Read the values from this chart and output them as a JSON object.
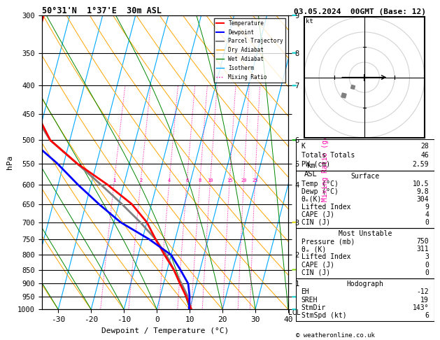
{
  "title_left": "50°31'N  1°37'E  30m ASL",
  "title_right": "03.05.2024  00GMT (Base: 12)",
  "xlabel": "Dewpoint / Temperature (°C)",
  "ylabel_left": "hPa",
  "pressure_levels": [
    300,
    350,
    400,
    450,
    500,
    550,
    600,
    650,
    700,
    750,
    800,
    850,
    900,
    950,
    1000
  ],
  "temp_color": "#ff0000",
  "dewp_color": "#0000ff",
  "parcel_color": "#808080",
  "dry_adiabat_color": "#ffa500",
  "wet_adiabat_color": "#008800",
  "isotherm_color": "#00aaff",
  "mixing_ratio_color": "#ff00aa",
  "xlim": [
    -35,
    40
  ],
  "temp_profile_T": [
    10.5,
    8.0,
    5.0,
    2.0,
    -2.0,
    -6.0,
    -10.0,
    -16.0,
    -25.0,
    -36.0,
    -46.0,
    -52.0,
    -57.0,
    -58.0,
    -58.0
  ],
  "temp_profile_p": [
    1000,
    950,
    900,
    850,
    800,
    750,
    700,
    650,
    600,
    550,
    500,
    450,
    400,
    350,
    300
  ],
  "dewp_profile_T": [
    9.8,
    9.0,
    7.5,
    4.0,
    0.0,
    -8.0,
    -18.0,
    -26.0,
    -34.0,
    -42.0,
    -52.0,
    -58.0,
    -62.0,
    -64.0,
    -65.0
  ],
  "dewp_profile_p": [
    1000,
    950,
    900,
    850,
    800,
    750,
    700,
    650,
    600,
    550,
    500,
    450,
    400,
    350,
    300
  ],
  "parcel_profile_T": [
    10.5,
    8.5,
    5.5,
    2.0,
    -1.5,
    -6.0,
    -12.0,
    -19.0,
    -27.0,
    -36.0,
    -46.0,
    -53.0,
    -58.0,
    -61.0,
    -63.0
  ],
  "parcel_profile_p": [
    1000,
    950,
    900,
    850,
    800,
    750,
    700,
    650,
    600,
    550,
    500,
    450,
    400,
    350,
    300
  ],
  "skew_factor": 45,
  "km_labels": {
    "300": "9",
    "350": "8",
    "400": "7",
    "500": "6",
    "550": "5",
    "600": "4",
    "700": "3",
    "800": "2",
    "900": "1"
  },
  "mixing_ratio_values": [
    1,
    2,
    4,
    6,
    8,
    10,
    15,
    20,
    25
  ],
  "stats": {
    "K": 28,
    "Totals_Totals": 46,
    "PW_cm": "2.59",
    "Surface_Temp": "10.5",
    "Surface_Dewp": "9.8",
    "Surface_ThetaE": 304,
    "Surface_LiftedIndex": 9,
    "Surface_CAPE": 4,
    "Surface_CIN": 0,
    "MU_Pressure": 750,
    "MU_ThetaE": 311,
    "MU_LiftedIndex": 3,
    "MU_CAPE": 0,
    "MU_CIN": 0,
    "EH": -12,
    "SREH": 19,
    "StmDir": "143°",
    "StmSpd": 6
  },
  "wind_barb_data": [
    {
      "p": 300,
      "color": "#00cccc",
      "style": "barb_n"
    },
    {
      "p": 350,
      "color": "#00cccc",
      "style": "barb_n"
    },
    {
      "p": 400,
      "color": "#00cccc",
      "style": "barb_n"
    },
    {
      "p": 500,
      "color": "#00aa00",
      "style": "barb_n"
    },
    {
      "p": 700,
      "color": "#dddd00",
      "style": "barb_n"
    },
    {
      "p": 850,
      "color": "#88dd00",
      "style": "barb_n"
    },
    {
      "p": 950,
      "color": "#00cccc",
      "style": "barb_n"
    },
    {
      "p": 1000,
      "color": "#00cccc",
      "style": "barb_n"
    }
  ]
}
